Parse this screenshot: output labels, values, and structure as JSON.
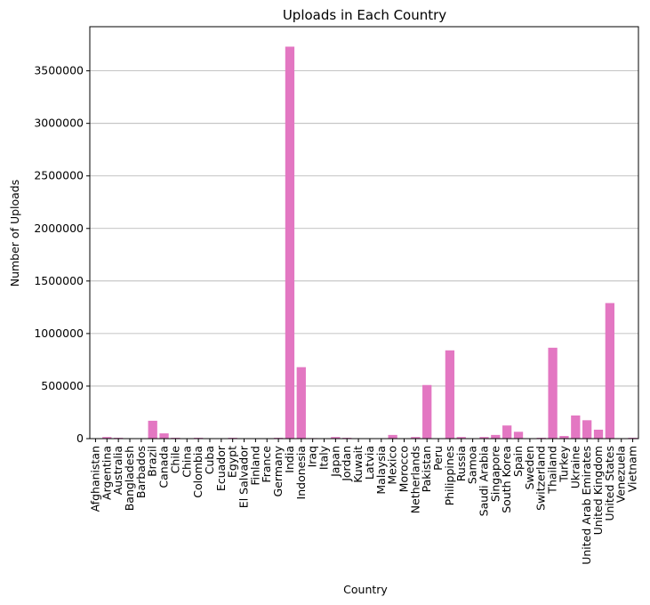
{
  "chart_data": {
    "type": "bar",
    "title": "Uploads in Each Country",
    "xlabel": "Country",
    "ylabel": "Number of Uploads",
    "ylim": [
      0,
      3920000
    ],
    "yticks": [
      0,
      500000,
      1000000,
      1500000,
      2000000,
      2500000,
      3000000,
      3500000
    ],
    "grid": "y-axis only",
    "bar_color": "#e377c2",
    "categories": [
      "Afghanistan",
      "Argentina",
      "Australia",
      "Bangladesh",
      "Barbados",
      "Brazil",
      "Canada",
      "Chile",
      "China",
      "Colombia",
      "Cuba",
      "Ecuador",
      "Egypt",
      "El Salvador",
      "Finland",
      "France",
      "Germany",
      "India",
      "Indonesia",
      "Iraq",
      "Italy",
      "Japan",
      "Jordan",
      "Kuwait",
      "Latvia",
      "Malaysia",
      "Mexico",
      "Morocco",
      "Netherlands",
      "Pakistan",
      "Peru",
      "Philippines",
      "Russia",
      "Samoa",
      "Saudi Arabia",
      "Singapore",
      "South Korea",
      "Spain",
      "Sweden",
      "Switzerland",
      "Thailand",
      "Turkey",
      "Ukraine",
      "United Arab Emirates",
      "United Kingdom",
      "United States",
      "Venezuela",
      "Vietnam"
    ],
    "values": [
      2000,
      15000,
      8000,
      3000,
      1000,
      170000,
      50000,
      8000,
      3000,
      8000,
      2000,
      2000,
      8000,
      3000,
      2000,
      2000,
      8000,
      3730000,
      680000,
      5000,
      3000,
      15000,
      8000,
      2000,
      2000,
      3000,
      35000,
      3000,
      15000,
      510000,
      3000,
      840000,
      15000,
      3000,
      15000,
      35000,
      125000,
      65000,
      3000,
      8000,
      865000,
      25000,
      220000,
      175000,
      85000,
      1290000,
      3000,
      8000
    ]
  }
}
